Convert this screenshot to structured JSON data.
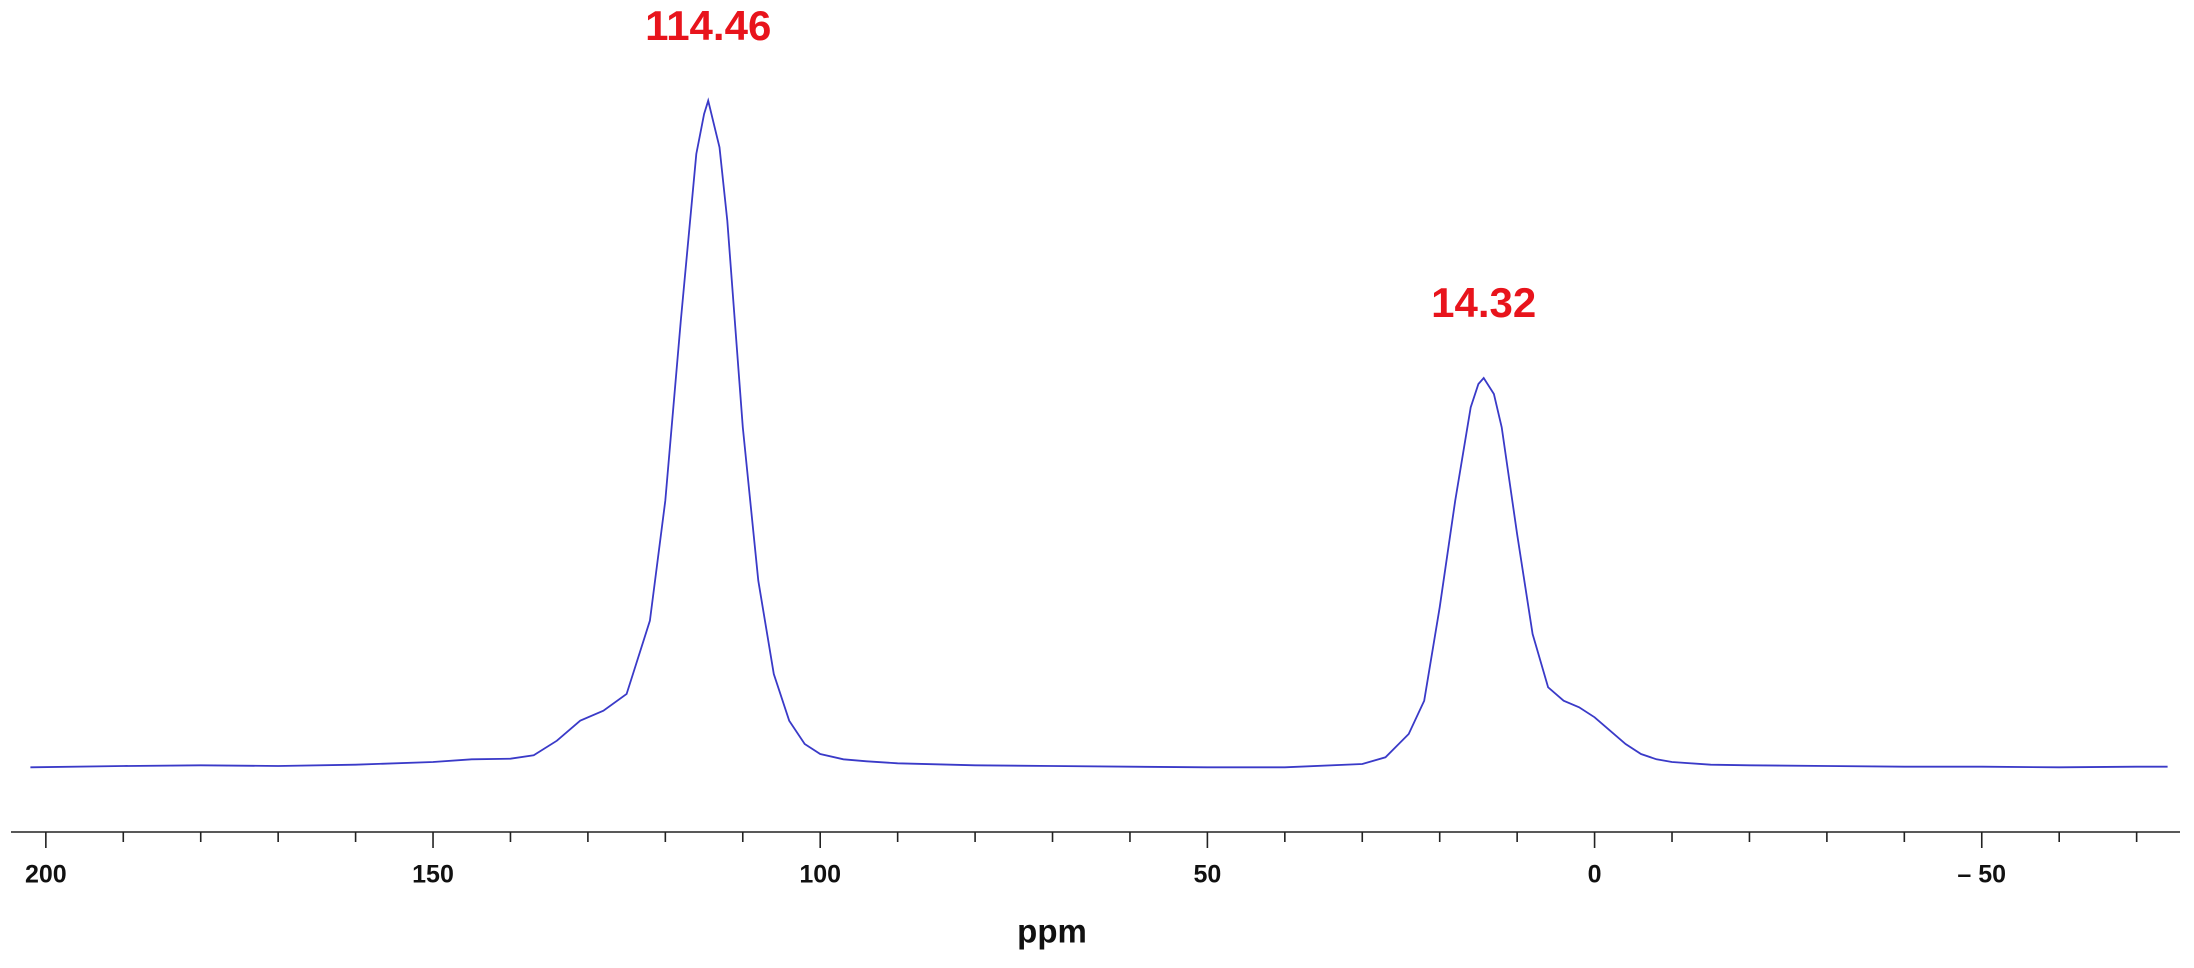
{
  "chart_data": {
    "type": "line",
    "x_label": "ppm",
    "x": [
      202,
      190,
      180,
      170,
      160,
      150,
      145,
      140,
      137,
      134,
      131,
      128,
      125,
      122,
      120,
      118,
      116,
      115,
      114.46,
      113,
      112,
      110,
      108,
      106,
      104,
      102,
      100,
      97,
      94,
      90,
      80,
      70,
      60,
      50,
      40,
      30,
      27,
      24,
      22,
      20,
      18,
      16,
      15,
      14.32,
      13,
      12,
      10,
      8,
      6,
      4,
      2,
      0,
      -2,
      -4,
      -6,
      -8,
      -10,
      -15,
      -20,
      -30,
      -40,
      -50,
      -60,
      -70,
      -74
    ],
    "series": [
      {
        "color": "#3a3ac8",
        "values": [
          0,
          0.2,
          0.3,
          0.2,
          0.4,
          0.8,
          1.2,
          1.3,
          1.8,
          4,
          7,
          8.5,
          11,
          22,
          40,
          67,
          92,
          98,
          100,
          93,
          82,
          51,
          28,
          14,
          7,
          3.5,
          2,
          1.2,
          0.9,
          0.6,
          0.3,
          0.2,
          0.1,
          0,
          0,
          0.5,
          1.5,
          5,
          10,
          24,
          40,
          54,
          57.5,
          58.4,
          56,
          51,
          35,
          20,
          12,
          10,
          9,
          7.5,
          5.5,
          3.5,
          2,
          1.2,
          0.8,
          0.4,
          0.3,
          0.2,
          0.1,
          0.1,
          0,
          0.1,
          0.1
        ]
      }
    ],
    "peak_labels": [
      114.46,
      14.32
    ],
    "peak_label_color": "#e8141c",
    "xlim": [
      204.5,
      -75.6
    ],
    "ylim": [
      -9.7,
      113
    ],
    "xticks": [
      200,
      150,
      100,
      50,
      0,
      {
        "value": -50,
        "label": "– 50"
      }
    ],
    "xminorticks": [
      190,
      180,
      170,
      160,
      140,
      130,
      120,
      110,
      90,
      80,
      70,
      60,
      40,
      30,
      20,
      10,
      -10,
      -20,
      -30,
      -40,
      -60,
      -70
    ]
  }
}
